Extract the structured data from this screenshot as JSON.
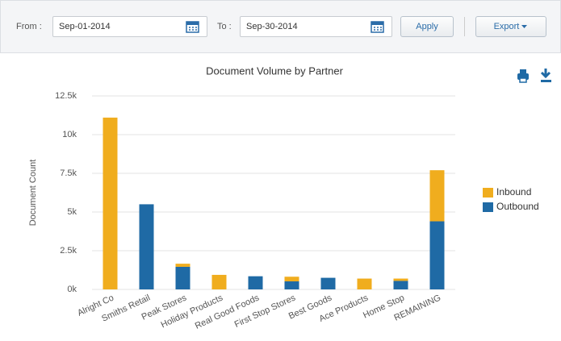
{
  "toolbar": {
    "from_label": "From :",
    "from_date": "Sep-01-2014",
    "to_label": "To :",
    "to_date": "Sep-30-2014",
    "apply": "Apply",
    "export": "Export"
  },
  "chart_data": {
    "type": "bar",
    "stacked": true,
    "title": "Document Volume by Partner",
    "y_label": "Document Count",
    "categories": [
      "Alright Co",
      "Smiths Retail",
      "Peak Stores",
      "Holiday Products",
      "Real Good Foods",
      "First Stop Stores",
      "Best Goods",
      "Ace Products",
      "Home Stop",
      "REMAINING"
    ],
    "series": [
      {
        "name": "Inbound",
        "color": "#f0ad1e",
        "values": [
          11100,
          0,
          200,
          940,
          0,
          300,
          0,
          700,
          150,
          3300
        ]
      },
      {
        "name": "Outbound",
        "color": "#1f6aa5",
        "values": [
          0,
          5500,
          1460,
          0,
          850,
          520,
          750,
          0,
          550,
          4400
        ]
      }
    ],
    "ylim": [
      0,
      12500
    ],
    "yticks": [
      {
        "value": 0,
        "label": "0k"
      },
      {
        "value": 2500,
        "label": "2.5k"
      },
      {
        "value": 5000,
        "label": "5k"
      },
      {
        "value": 7500,
        "label": "7.5k"
      },
      {
        "value": 10000,
        "label": "10k"
      },
      {
        "value": 12500,
        "label": "12.5k"
      }
    ],
    "grid": true,
    "legend": "right"
  }
}
